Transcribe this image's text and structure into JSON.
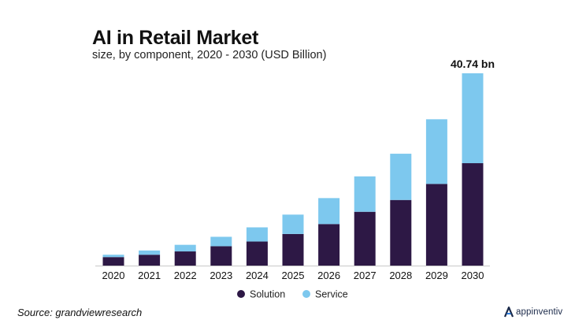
{
  "title": "AI in Retail Market",
  "subtitle": "size, by component, 2020 - 2030 (USD Billion)",
  "source": "Source: grandviewresearch",
  "brand": "appinventiv",
  "colors": {
    "solution": "#2d1845",
    "service": "#7dc8ee",
    "axis": "#c8c8c8",
    "logo_accent": "#2b7de0"
  },
  "chart_data": {
    "type": "bar",
    "stacked": true,
    "title": "AI in Retail Market",
    "subtitle": "size, by component, 2020 - 2030 (USD Billion)",
    "xlabel": "",
    "ylabel": "",
    "ylim": [
      0,
      42
    ],
    "grid": false,
    "legend": "bottom-center",
    "categories": [
      "2020",
      "2021",
      "2022",
      "2023",
      "2024",
      "2025",
      "2026",
      "2027",
      "2028",
      "2029",
      "2030"
    ],
    "series": [
      {
        "name": "Solution",
        "values": [
          1.8,
          2.3,
          3.0,
          4.1,
          5.1,
          6.7,
          8.8,
          11.4,
          13.9,
          17.3,
          21.7
        ]
      },
      {
        "name": "Service",
        "values": [
          0.5,
          0.9,
          1.4,
          2.0,
          3.0,
          4.1,
          5.5,
          7.5,
          9.8,
          13.7,
          19.04
        ]
      }
    ],
    "annotations": [
      {
        "category": "2030",
        "text": "40.74 bn"
      }
    ]
  }
}
